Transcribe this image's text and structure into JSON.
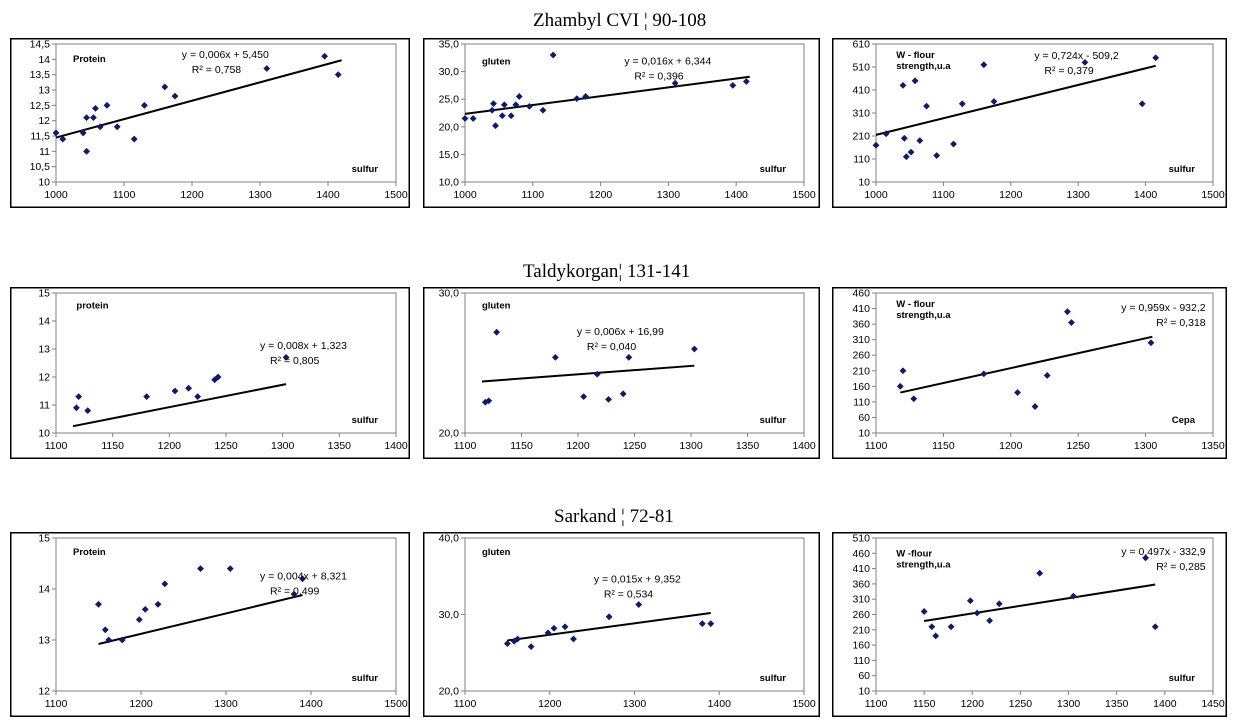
{
  "group_titles": [
    "Zhambyl CVI ¦ 90-108",
    "Taldykorgan¦ 131-141",
    "Sarkand ¦ 72-81"
  ],
  "chart_data": [
    {
      "type": "scatter",
      "row": 0,
      "col": 0,
      "label": "Protein",
      "xlabel": "sulfur",
      "equation": "y = 0,006x + 5,450",
      "r2": "R² = 0,758",
      "xlim": [
        1000,
        1500
      ],
      "xticks": [
        1000,
        1100,
        1200,
        1300,
        1400,
        1500
      ],
      "xticklabels": [
        "1000",
        "1100",
        "1200",
        "1300",
        "1400",
        "1500"
      ],
      "ylim": [
        10,
        14.5
      ],
      "yticks": [
        10,
        10.5,
        11,
        11.5,
        12,
        12.5,
        13,
        13.5,
        14,
        14.5
      ],
      "yticklabels": [
        "10",
        "10,5",
        "11",
        "11,5",
        "12",
        "12,5",
        "13",
        "13,5",
        "14",
        "14,5"
      ],
      "trend": {
        "slope": 0.006,
        "intercept": 5.45,
        "x": [
          1000,
          1420
        ]
      },
      "points": [
        [
          1000,
          11.6
        ],
        [
          1010,
          11.4
        ],
        [
          1040,
          11.6
        ],
        [
          1045,
          11.0
        ],
        [
          1045,
          12.1
        ],
        [
          1055,
          12.1
        ],
        [
          1058,
          12.4
        ],
        [
          1065,
          11.8
        ],
        [
          1075,
          12.5
        ],
        [
          1090,
          11.8
        ],
        [
          1115,
          11.4
        ],
        [
          1130,
          12.5
        ],
        [
          1160,
          13.1
        ],
        [
          1175,
          12.8
        ],
        [
          1310,
          13.7
        ],
        [
          1395,
          14.1
        ],
        [
          1415,
          13.5
        ]
      ]
    },
    {
      "type": "scatter",
      "row": 0,
      "col": 1,
      "label": "gluten",
      "xlabel": "sulfur",
      "equation": "y = 0,016x + 6,344",
      "r2": "R² = 0,396",
      "xlim": [
        1000,
        1500
      ],
      "xticks": [
        1000,
        1100,
        1200,
        1300,
        1400,
        1500
      ],
      "xticklabels": [
        "1000",
        "1100",
        "1200",
        "1300",
        "1400",
        "1500"
      ],
      "ylim": [
        10,
        35
      ],
      "yticks": [
        10,
        15,
        20,
        25,
        30,
        35
      ],
      "yticklabels": [
        "10,0",
        "15,0",
        "20,0",
        "25,0",
        "30,0",
        "35,0"
      ],
      "trend": {
        "slope": 0.016,
        "intercept": 6.344,
        "x": [
          1000,
          1420
        ]
      },
      "points": [
        [
          1000,
          21.5
        ],
        [
          1012,
          21.5
        ],
        [
          1040,
          23.0
        ],
        [
          1042,
          24.2
        ],
        [
          1045,
          20.2
        ],
        [
          1055,
          22.0
        ],
        [
          1058,
          24.0
        ],
        [
          1068,
          22.0
        ],
        [
          1075,
          24.0
        ],
        [
          1080,
          25.5
        ],
        [
          1095,
          23.7
        ],
        [
          1115,
          23.0
        ],
        [
          1130,
          33.0
        ],
        [
          1165,
          25.1
        ],
        [
          1178,
          25.5
        ],
        [
          1310,
          27.9
        ],
        [
          1395,
          27.5
        ],
        [
          1415,
          28.2
        ]
      ]
    },
    {
      "type": "scatter",
      "row": 0,
      "col": 2,
      "label": "W - flour\nstrength,u.a",
      "xlabel": "sulfur",
      "equation": "y = 0,724x - 509,2",
      "r2": "R² = 0,379",
      "xlim": [
        1000,
        1500
      ],
      "xticks": [
        1000,
        1100,
        1200,
        1300,
        1400,
        1500
      ],
      "xticklabels": [
        "1000",
        "1100",
        "1200",
        "1300",
        "1400",
        "1500"
      ],
      "ylim": [
        10,
        610
      ],
      "yticks": [
        10,
        110,
        210,
        310,
        410,
        510,
        610
      ],
      "yticklabels": [
        "10",
        "110",
        "210",
        "310",
        "410",
        "510",
        "610"
      ],
      "trend": {
        "slope": 0.724,
        "intercept": -509.2,
        "x": [
          1000,
          1415
        ]
      },
      "points": [
        [
          1000,
          170
        ],
        [
          1015,
          220
        ],
        [
          1040,
          430
        ],
        [
          1042,
          200
        ],
        [
          1045,
          120
        ],
        [
          1052,
          140
        ],
        [
          1058,
          450
        ],
        [
          1065,
          190
        ],
        [
          1075,
          340
        ],
        [
          1090,
          125
        ],
        [
          1115,
          175
        ],
        [
          1128,
          350
        ],
        [
          1160,
          520
        ],
        [
          1175,
          360
        ],
        [
          1310,
          530
        ],
        [
          1395,
          350
        ],
        [
          1415,
          550
        ]
      ]
    },
    {
      "type": "scatter",
      "row": 1,
      "col": 0,
      "label": "protein",
      "xlabel": "sulfur",
      "equation": "y = 0,008x + 1,323",
      "r2": "R² = 0,805",
      "xlim": [
        1100,
        1400
      ],
      "xticks": [
        1100,
        1150,
        1200,
        1250,
        1300,
        1350,
        1400
      ],
      "xticklabels": [
        "1100",
        "1150",
        "1200",
        "1250",
        "1300",
        "1350",
        "1400"
      ],
      "ylim": [
        10,
        15
      ],
      "yticks": [
        10,
        11,
        12,
        13,
        14,
        15
      ],
      "yticklabels": [
        "10",
        "11",
        "12",
        "13",
        "14",
        "15"
      ],
      "trend": {
        "slope": 0.008,
        "intercept": 1.323,
        "x": [
          1115,
          1303
        ]
      },
      "points": [
        [
          1118,
          10.9
        ],
        [
          1120,
          11.3
        ],
        [
          1128,
          10.8
        ],
        [
          1180,
          11.3
        ],
        [
          1205,
          11.5
        ],
        [
          1217,
          11.6
        ],
        [
          1225,
          11.3
        ],
        [
          1240,
          11.9
        ],
        [
          1243,
          12.0
        ],
        [
          1303,
          12.7
        ]
      ]
    },
    {
      "type": "scatter",
      "row": 1,
      "col": 1,
      "label": "gluten",
      "xlabel": "sulfur",
      "equation": "y = 0,006x + 16,99",
      "r2": "R² = 0,040",
      "xlim": [
        1100,
        1400
      ],
      "xticks": [
        1100,
        1150,
        1200,
        1250,
        1300,
        1350,
        1400
      ],
      "xticklabels": [
        "1100",
        "1150",
        "1200",
        "1250",
        "1300",
        "1350",
        "1400"
      ],
      "ylim": [
        20,
        30
      ],
      "yticks": [
        20,
        30
      ],
      "yticklabels": [
        "20,0",
        "30,0"
      ],
      "trend": {
        "slope": 0.006,
        "intercept": 16.99,
        "x": [
          1115,
          1303
        ]
      },
      "points": [
        [
          1118,
          22.2
        ],
        [
          1121,
          22.3
        ],
        [
          1128,
          27.2
        ],
        [
          1180,
          25.4
        ],
        [
          1205,
          22.6
        ],
        [
          1217,
          24.2
        ],
        [
          1227,
          22.4
        ],
        [
          1240,
          22.8
        ],
        [
          1245,
          25.4
        ],
        [
          1303,
          26.0
        ]
      ]
    },
    {
      "type": "scatter",
      "row": 1,
      "col": 2,
      "label": "W - flour\nstrength,u.a",
      "xlabel": "Cepa",
      "equation": "y = 0,959x - 932,2",
      "r2": "R² = 0,318",
      "xlim": [
        1100,
        1350
      ],
      "xticks": [
        1100,
        1150,
        1200,
        1250,
        1300,
        1350
      ],
      "xticklabels": [
        "1100",
        "1150",
        "1200",
        "1250",
        "1300",
        "1350"
      ],
      "ylim": [
        10,
        460
      ],
      "yticks": [
        10,
        60,
        110,
        160,
        210,
        260,
        310,
        360,
        410,
        460
      ],
      "yticklabels": [
        "10",
        "60",
        "110",
        "160",
        "210",
        "260",
        "310",
        "360",
        "410",
        "460"
      ],
      "trend": {
        "slope": 0.959,
        "intercept": -932.2,
        "x": [
          1118,
          1305
        ]
      },
      "points": [
        [
          1118,
          160
        ],
        [
          1120,
          210
        ],
        [
          1128,
          120
        ],
        [
          1180,
          200
        ],
        [
          1205,
          140
        ],
        [
          1218,
          95
        ],
        [
          1227,
          195
        ],
        [
          1242,
          400
        ],
        [
          1245,
          365
        ],
        [
          1304,
          300
        ]
      ]
    },
    {
      "type": "scatter",
      "row": 2,
      "col": 0,
      "label": "Protein",
      "xlabel": "sulfur",
      "equation": "y = 0,004x + 8,321",
      "r2": "R² = 0,499",
      "xlim": [
        1100,
        1500
      ],
      "xticks": [
        1100,
        1200,
        1300,
        1400,
        1500
      ],
      "xticklabels": [
        "1100",
        "1200",
        "1300",
        "1400",
        "1500"
      ],
      "ylim": [
        12,
        15
      ],
      "yticks": [
        12,
        13,
        14,
        15
      ],
      "yticklabels": [
        "12",
        "13",
        "14",
        "15"
      ],
      "trend": {
        "slope": 0.004,
        "intercept": 8.321,
        "x": [
          1150,
          1390
        ]
      },
      "points": [
        [
          1150,
          13.7
        ],
        [
          1158,
          13.2
        ],
        [
          1162,
          13.0
        ],
        [
          1178,
          13.0
        ],
        [
          1198,
          13.4
        ],
        [
          1205,
          13.6
        ],
        [
          1220,
          13.7
        ],
        [
          1228,
          14.1
        ],
        [
          1270,
          14.4
        ],
        [
          1305,
          14.4
        ],
        [
          1380,
          13.9
        ],
        [
          1390,
          14.2
        ]
      ]
    },
    {
      "type": "scatter",
      "row": 2,
      "col": 1,
      "label": "gluten",
      "xlabel": "sulfur",
      "equation": "y = 0,015x + 9,352",
      "r2": "R² = 0,534",
      "xlim": [
        1100,
        1500
      ],
      "xticks": [
        1100,
        1200,
        1300,
        1400,
        1500
      ],
      "xticklabels": [
        "1100",
        "1200",
        "1300",
        "1400",
        "1500"
      ],
      "ylim": [
        20,
        40
      ],
      "yticks": [
        20,
        30,
        40
      ],
      "yticklabels": [
        "20,0",
        "30,0",
        "40,0"
      ],
      "trend": {
        "slope": 0.015,
        "intercept": 9.352,
        "x": [
          1150,
          1390
        ]
      },
      "points": [
        [
          1150,
          26.2
        ],
        [
          1158,
          26.5
        ],
        [
          1162,
          26.8
        ],
        [
          1178,
          25.8
        ],
        [
          1198,
          27.6
        ],
        [
          1205,
          28.2
        ],
        [
          1218,
          28.4
        ],
        [
          1228,
          26.8
        ],
        [
          1270,
          29.7
        ],
        [
          1305,
          31.3
        ],
        [
          1380,
          28.8
        ],
        [
          1390,
          28.8
        ]
      ]
    },
    {
      "type": "scatter",
      "row": 2,
      "col": 2,
      "label": "W -flour\nstrength,u.a",
      "xlabel": "sulfur",
      "equation": "y = 0,497x - 332,9",
      "r2": "R² = 0,285",
      "xlim": [
        1100,
        1450
      ],
      "xticks": [
        1100,
        1150,
        1200,
        1250,
        1300,
        1350,
        1400,
        1450
      ],
      "xticklabels": [
        "1100",
        "1150",
        "1200",
        "1250",
        "1300",
        "1350",
        "1400",
        "1450"
      ],
      "ylim": [
        10,
        510
      ],
      "yticks": [
        10,
        60,
        110,
        160,
        210,
        260,
        310,
        360,
        410,
        460,
        510
      ],
      "yticklabels": [
        "10",
        "60",
        "110",
        "160",
        "210",
        "260",
        "310",
        "360",
        "410",
        "460",
        "510"
      ],
      "trend": {
        "slope": 0.497,
        "intercept": -332.9,
        "x": [
          1150,
          1390
        ]
      },
      "points": [
        [
          1150,
          270
        ],
        [
          1158,
          220
        ],
        [
          1162,
          190
        ],
        [
          1178,
          220
        ],
        [
          1198,
          305
        ],
        [
          1205,
          265
        ],
        [
          1218,
          240
        ],
        [
          1228,
          295
        ],
        [
          1270,
          395
        ],
        [
          1305,
          320
        ],
        [
          1380,
          445
        ],
        [
          1390,
          220
        ]
      ]
    }
  ]
}
